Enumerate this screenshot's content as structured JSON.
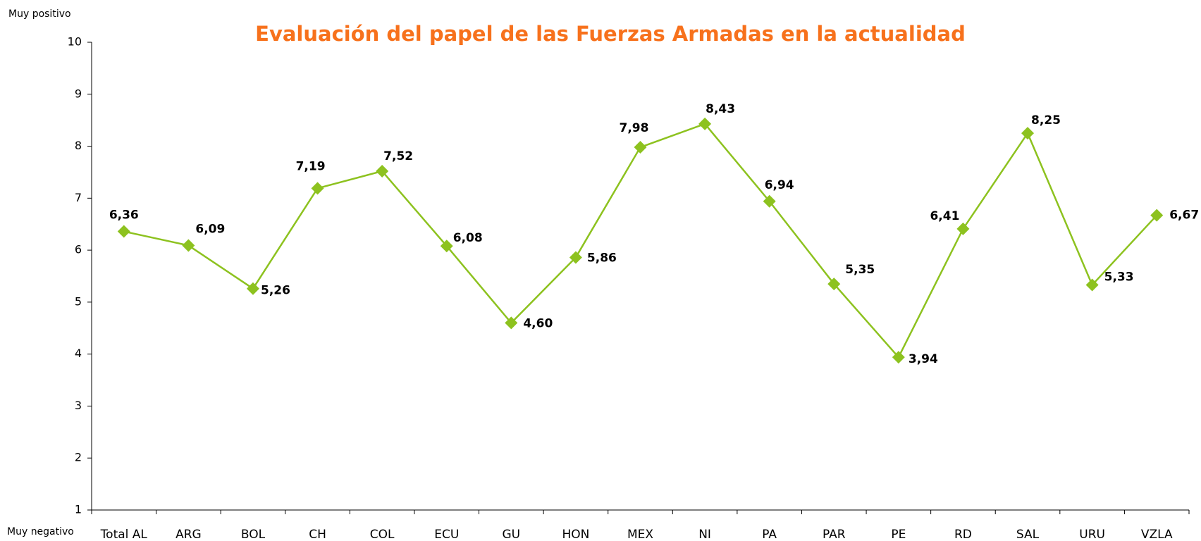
{
  "chart_data": {
    "type": "line",
    "title": "Evaluación del papel de las Fuerzas Armadas en la actualidad",
    "annotations": [
      "Muy positivo",
      "Muy negativo"
    ],
    "categories": [
      "Total AL",
      "ARG",
      "BOL",
      "CH",
      "COL",
      "ECU",
      "GU",
      "HON",
      "MEX",
      "NI",
      "PA",
      "PAR",
      "PE",
      "RD",
      "SAL",
      "URU",
      "VZLA"
    ],
    "series": [
      {
        "color": "#8dc21f",
        "values": [
          6.36,
          6.09,
          5.26,
          7.19,
          7.52,
          6.08,
          4.6,
          5.86,
          7.98,
          8.43,
          6.94,
          5.35,
          3.94,
          6.41,
          8.25,
          5.33,
          6.67
        ],
        "value_labels": [
          "6,36",
          "6,09",
          "5,26",
          "7,19",
          "7,52",
          "6,08",
          "4,60",
          "5,86",
          "7,98",
          "8,43",
          "6,94",
          "5,35",
          "3,94",
          "6,41",
          "8,25",
          "5,33",
          "6,67"
        ]
      }
    ],
    "ylim": [
      1,
      10
    ],
    "yticks": [
      1,
      2,
      3,
      4,
      5,
      6,
      7,
      8,
      9,
      10
    ],
    "grid": false
  }
}
